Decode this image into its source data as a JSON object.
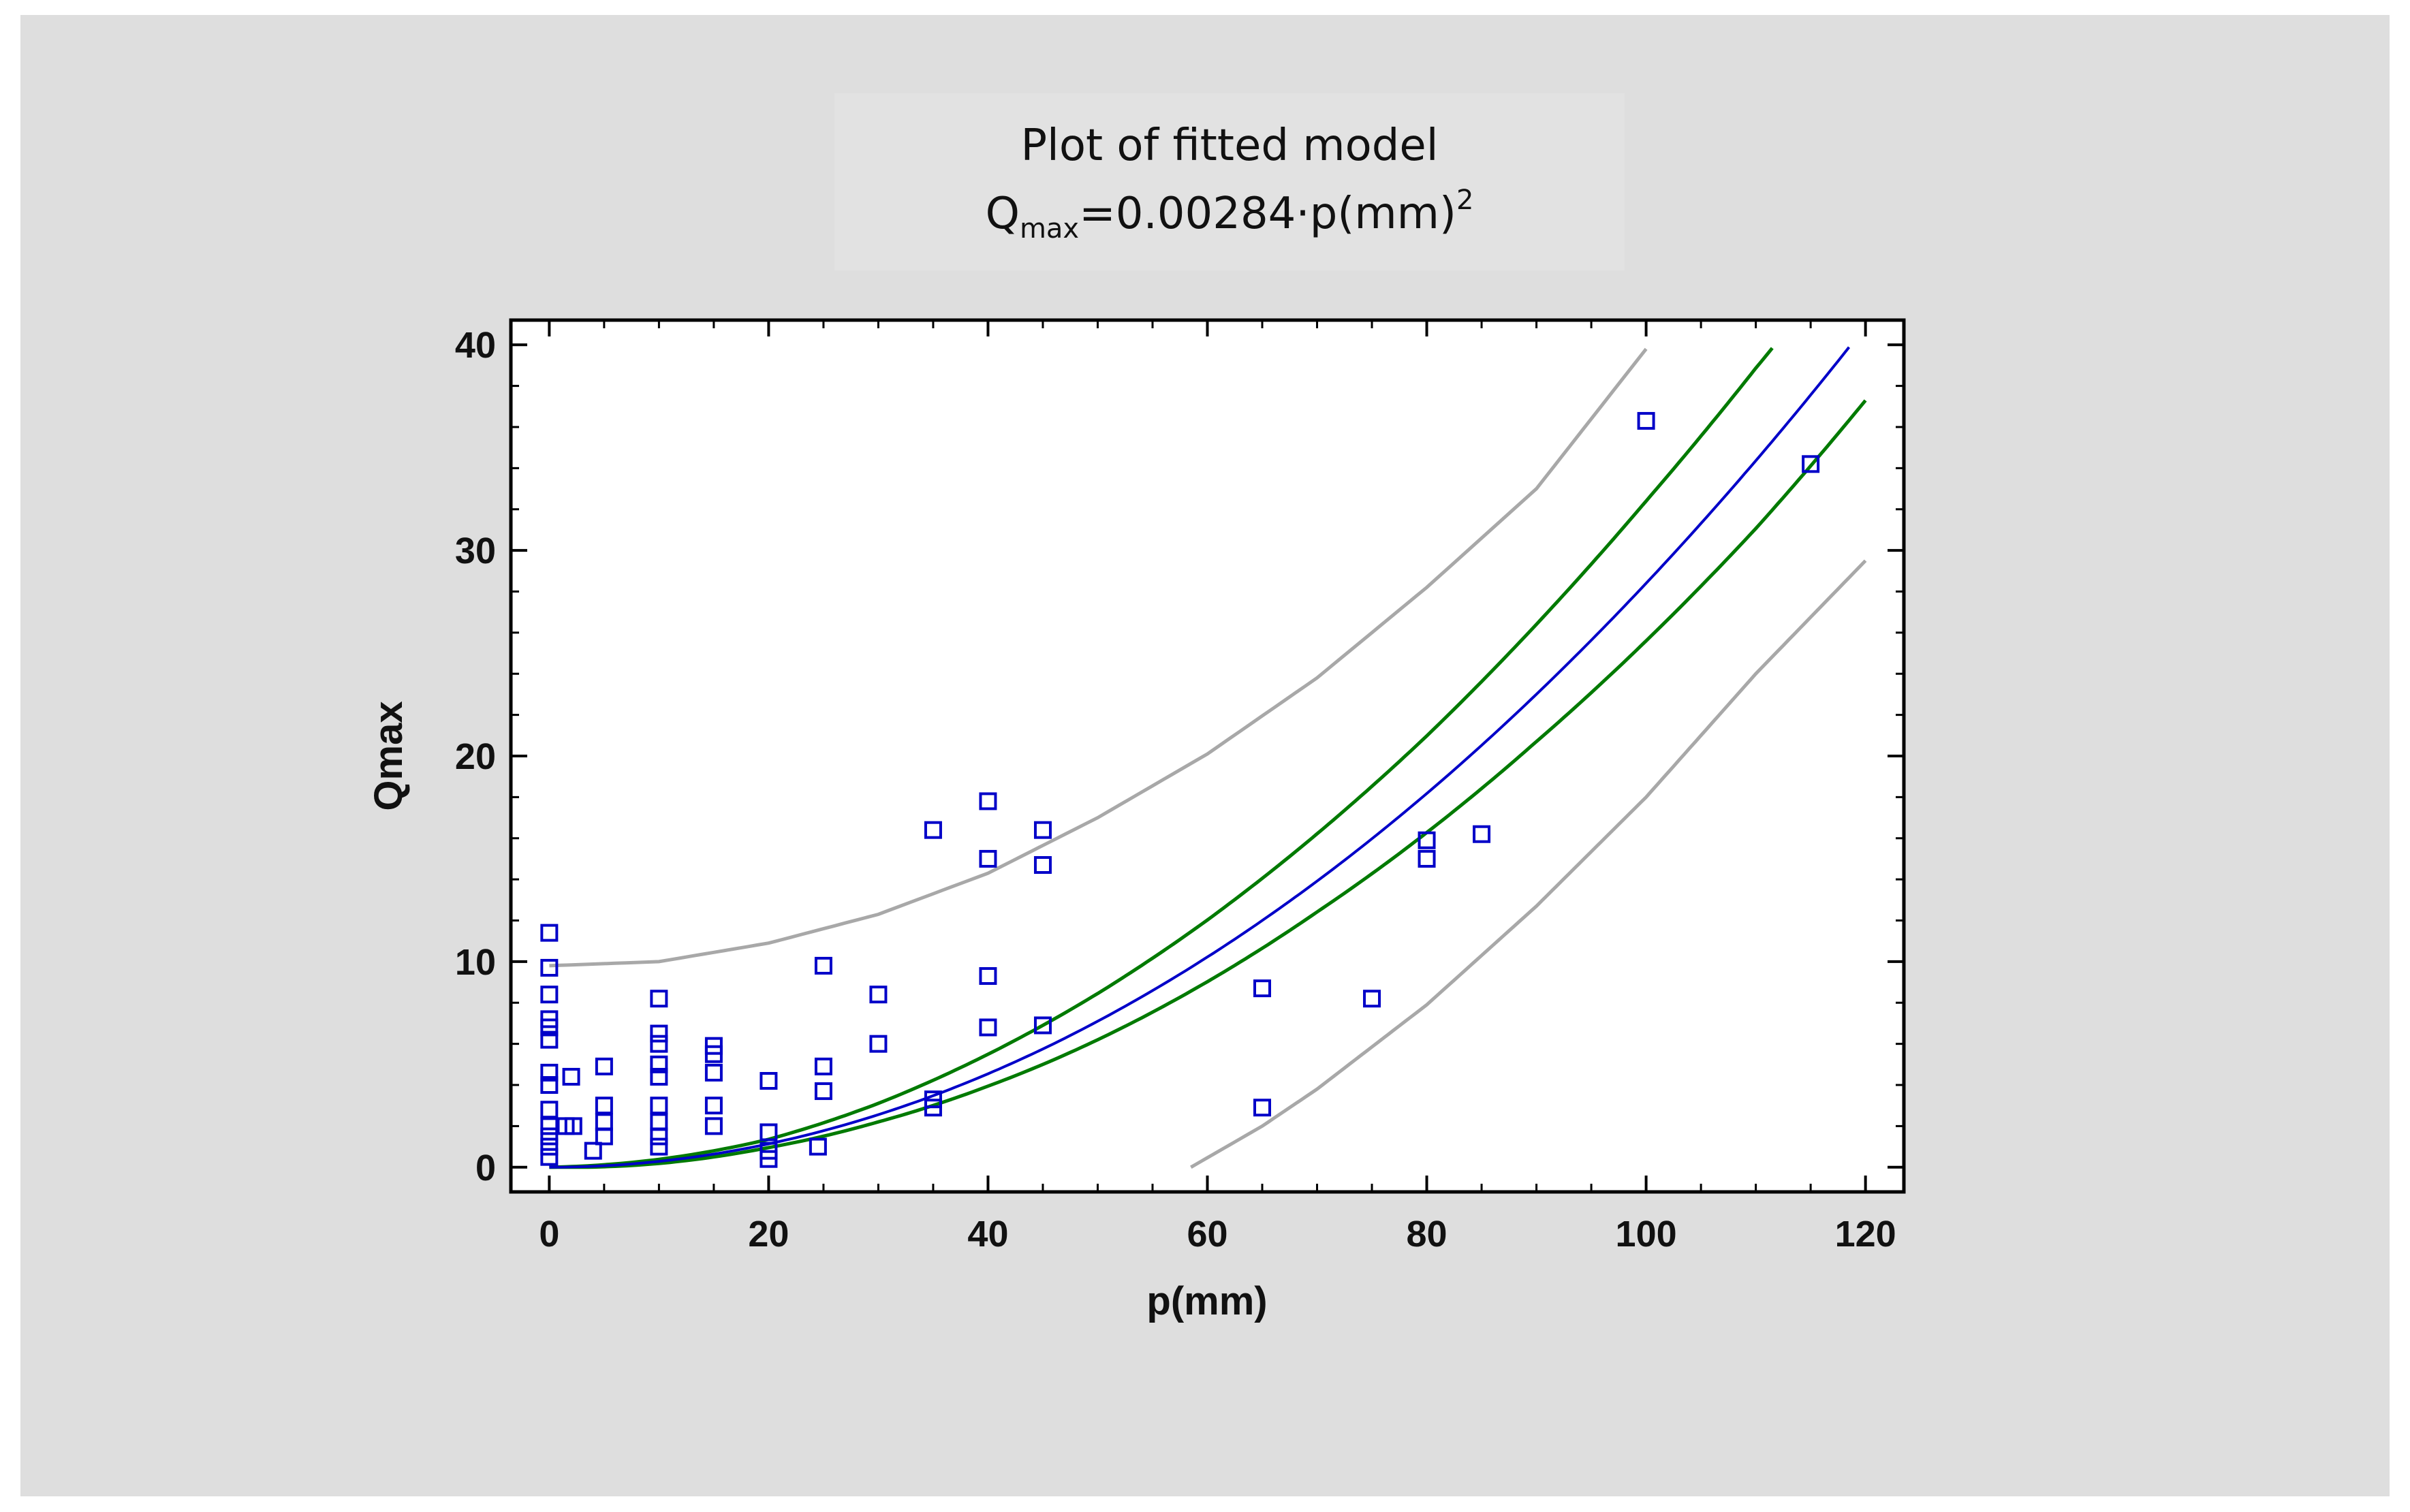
{
  "chart_data": {
    "type": "scatter",
    "title": "Plot of fitted model",
    "subtitle": {
      "prefix": "Q",
      "subscript": "max",
      "formula": "=0.00284·p(mm)",
      "superscript": "2"
    },
    "xlabel": "p(mm)",
    "ylabel": "Qmax",
    "xlim": [
      -3.5,
      123.5
    ],
    "ylim": [
      -1.2,
      41.2
    ],
    "xticks": [
      0,
      20,
      40,
      60,
      80,
      100,
      120
    ],
    "yticks": [
      0,
      10,
      20,
      30,
      40
    ],
    "model_coefficient": 0.00284,
    "points": [
      {
        "x": 0,
        "y": 0.5
      },
      {
        "x": 0,
        "y": 1.0
      },
      {
        "x": 0,
        "y": 1.5
      },
      {
        "x": 0,
        "y": 2.0
      },
      {
        "x": 0,
        "y": 2.8
      },
      {
        "x": 0,
        "y": 4.0
      },
      {
        "x": 0,
        "y": 4.6
      },
      {
        "x": 0,
        "y": 6.2
      },
      {
        "x": 0,
        "y": 6.8
      },
      {
        "x": 0,
        "y": 7.2
      },
      {
        "x": 0,
        "y": 8.4
      },
      {
        "x": 0,
        "y": 9.7
      },
      {
        "x": 0,
        "y": 11.4
      },
      {
        "x": 1.5,
        "y": 2.0
      },
      {
        "x": 2.0,
        "y": 4.4
      },
      {
        "x": 2.2,
        "y": 2.0
      },
      {
        "x": 4.0,
        "y": 0.8
      },
      {
        "x": 5,
        "y": 1.5
      },
      {
        "x": 5,
        "y": 2.2
      },
      {
        "x": 5,
        "y": 3.0
      },
      {
        "x": 5,
        "y": 4.9
      },
      {
        "x": 10,
        "y": 1.0
      },
      {
        "x": 10,
        "y": 1.5
      },
      {
        "x": 10,
        "y": 2.2
      },
      {
        "x": 10,
        "y": 3.0
      },
      {
        "x": 10,
        "y": 4.4
      },
      {
        "x": 10,
        "y": 5.0
      },
      {
        "x": 10,
        "y": 6.0
      },
      {
        "x": 10,
        "y": 6.5
      },
      {
        "x": 10,
        "y": 8.2
      },
      {
        "x": 15,
        "y": 2.0
      },
      {
        "x": 15,
        "y": 3.0
      },
      {
        "x": 15,
        "y": 4.6
      },
      {
        "x": 15,
        "y": 5.5
      },
      {
        "x": 15,
        "y": 5.9
      },
      {
        "x": 20,
        "y": 0.4
      },
      {
        "x": 20,
        "y": 0.8
      },
      {
        "x": 20,
        "y": 1.7
      },
      {
        "x": 20,
        "y": 4.2
      },
      {
        "x": 24.5,
        "y": 1.0
      },
      {
        "x": 25,
        "y": 3.7
      },
      {
        "x": 25,
        "y": 4.9
      },
      {
        "x": 25,
        "y": 9.8
      },
      {
        "x": 30,
        "y": 6.0
      },
      {
        "x": 30,
        "y": 8.4
      },
      {
        "x": 35,
        "y": 2.9
      },
      {
        "x": 35,
        "y": 3.3
      },
      {
        "x": 35,
        "y": 16.4
      },
      {
        "x": 40,
        "y": 6.8
      },
      {
        "x": 40,
        "y": 9.3
      },
      {
        "x": 40,
        "y": 15.0
      },
      {
        "x": 40,
        "y": 17.8
      },
      {
        "x": 45,
        "y": 6.9
      },
      {
        "x": 45,
        "y": 14.7
      },
      {
        "x": 45,
        "y": 16.4
      },
      {
        "x": 65,
        "y": 2.9
      },
      {
        "x": 65,
        "y": 8.7
      },
      {
        "x": 75,
        "y": 8.2
      },
      {
        "x": 80,
        "y": 15.0
      },
      {
        "x": 80,
        "y": 15.9
      },
      {
        "x": 85,
        "y": 16.2
      },
      {
        "x": 100,
        "y": 36.3
      },
      {
        "x": 115,
        "y": 34.2
      }
    ],
    "fitted_line": {
      "x_range": [
        0,
        118.7
      ],
      "color": "#0000c8"
    },
    "confidence_band": {
      "color": "#007a00",
      "upper_half_width": [
        0,
        0.1,
        0.22,
        0.55,
        0.95,
        1.35,
        1.8,
        2.3,
        2.8,
        3.4,
        4.0,
        4.5,
        4.7
      ],
      "lower_half_width": [
        0,
        0.1,
        0.18,
        0.35,
        0.6,
        0.9,
        1.2,
        1.5,
        1.9,
        2.3,
        2.8,
        3.3,
        3.6
      ],
      "x_range": [
        0,
        120
      ]
    },
    "prediction_band": {
      "color": "#a8a8a8",
      "upper": {
        "x": [
          0,
          10,
          20,
          30,
          40,
          50,
          60,
          70,
          80,
          90,
          100
        ],
        "y": [
          9.8,
          10.0,
          10.9,
          12.3,
          14.3,
          17.0,
          20.1,
          23.8,
          28.2,
          33.0,
          39.8
        ]
      },
      "lower": {
        "x": [
          58.5,
          65,
          70,
          80,
          90,
          100,
          110,
          120
        ],
        "y": [
          0.0,
          2.0,
          3.8,
          7.9,
          12.7,
          18.0,
          24.0,
          29.5
        ]
      }
    },
    "marker": {
      "shape": "open-square",
      "color": "#0000c8"
    },
    "grid": false,
    "legend": "none"
  }
}
